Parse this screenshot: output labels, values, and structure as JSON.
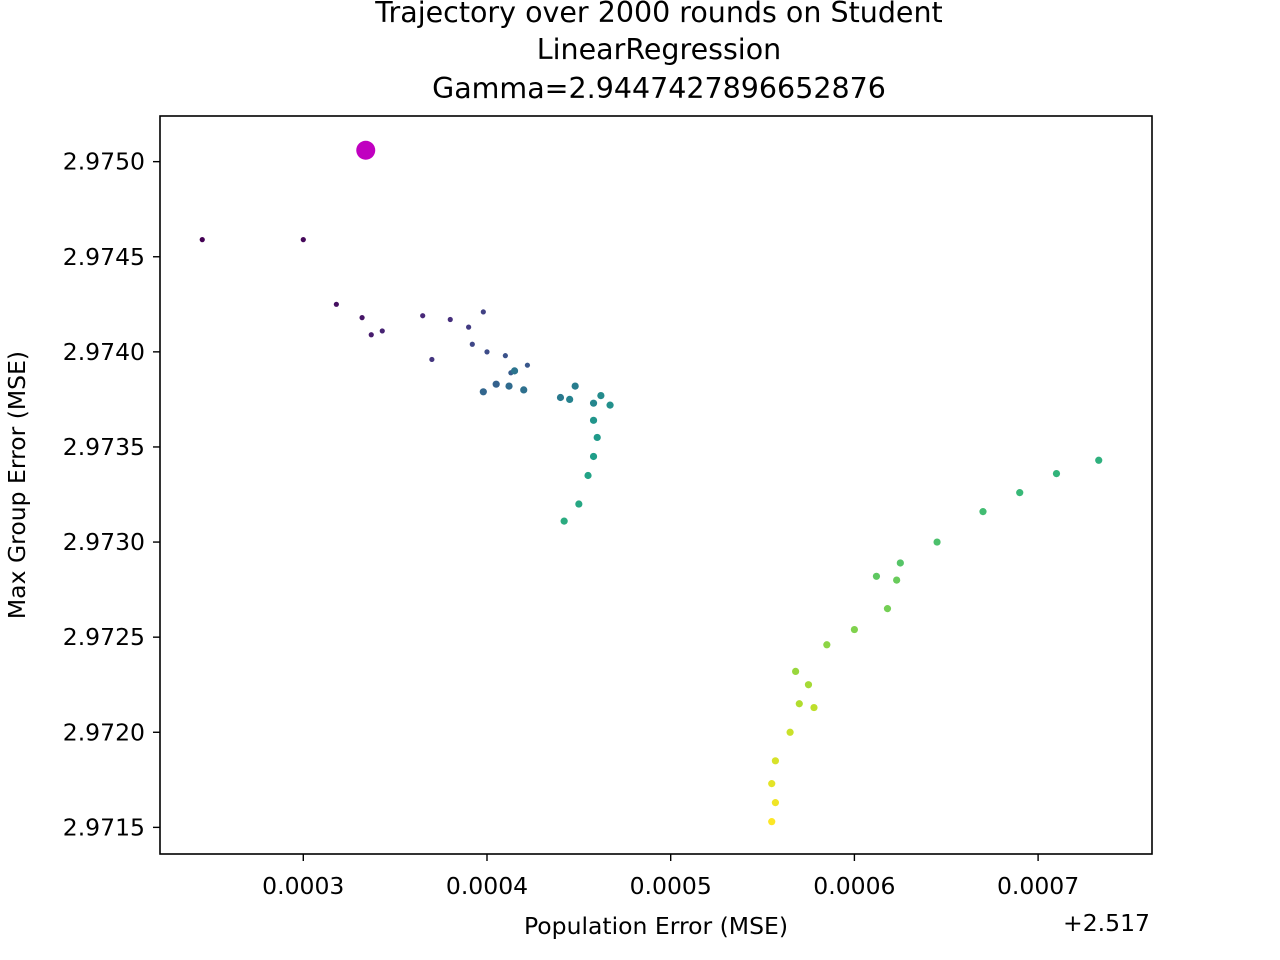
{
  "chart_data": {
    "type": "scatter",
    "title_lines": [
      "Trajectory over 2000 rounds on Student",
      "LinearRegression",
      "Gamma=2.9447427896652876"
    ],
    "xlabel": "Population Error (MSE)",
    "ylabel": "Max Group Error (MSE)",
    "x_offset_label": "+2.517",
    "x_offset": 2.517,
    "xlim": [
      0.000222,
      0.000762
    ],
    "ylim": [
      2.97136,
      2.97524
    ],
    "xticks": [
      0.0003,
      0.0004,
      0.0005,
      0.0006,
      0.0007
    ],
    "xtick_labels": [
      "0.0003",
      "0.0004",
      "0.0005",
      "0.0006",
      "0.0007"
    ],
    "yticks": [
      2.9715,
      2.972,
      2.9725,
      2.973,
      2.9735,
      2.974,
      2.9745,
      2.975
    ],
    "ytick_labels": [
      "2.9715",
      "2.9720",
      "2.9725",
      "2.9730",
      "2.9735",
      "2.9740",
      "2.9745",
      "2.9750"
    ],
    "colormap": "viridis",
    "highlight_point": {
      "x": 0.000334,
      "y": 2.97506,
      "color": "#c000c0"
    },
    "anchors": [
      [
        0.000245,
        2.97459
      ],
      [
        0.0003,
        2.97459
      ],
      [
        0.000318,
        2.97425
      ],
      [
        0.000332,
        2.97418
      ],
      [
        0.000337,
        2.97409
      ],
      [
        0.000343,
        2.97411
      ],
      [
        0.000365,
        2.97419
      ],
      [
        0.00038,
        2.97417
      ],
      [
        0.00037,
        2.97396
      ],
      [
        0.00039,
        2.97413
      ],
      [
        0.000398,
        2.97421
      ],
      [
        0.000392,
        2.97404
      ],
      [
        0.0004,
        2.974
      ],
      [
        0.00041,
        2.97398
      ],
      [
        0.000422,
        2.97393
      ],
      [
        0.000413,
        2.97389
      ],
      [
        0.000405,
        2.97383
      ],
      [
        0.000398,
        2.97379
      ],
      [
        0.000412,
        2.97382
      ],
      [
        0.00042,
        2.9738
      ],
      [
        0.000415,
        2.9739
      ],
      [
        0.00044,
        2.97376
      ],
      [
        0.000448,
        2.97382
      ],
      [
        0.000445,
        2.97375
      ],
      [
        0.000458,
        2.97373
      ],
      [
        0.000462,
        2.97377
      ],
      [
        0.000467,
        2.97372
      ],
      [
        0.000458,
        2.97364
      ],
      [
        0.00046,
        2.97355
      ],
      [
        0.000458,
        2.97345
      ],
      [
        0.000455,
        2.97335
      ],
      [
        0.00045,
        2.9732
      ],
      [
        0.000442,
        2.97311
      ],
      [
        0.000733,
        2.97343
      ],
      [
        0.00071,
        2.97336
      ],
      [
        0.00069,
        2.97326
      ],
      [
        0.00067,
        2.97316
      ],
      [
        0.000645,
        2.973
      ],
      [
        0.000625,
        2.97289
      ],
      [
        0.000612,
        2.97282
      ],
      [
        0.000623,
        2.9728
      ],
      [
        0.000618,
        2.97265
      ],
      [
        0.0006,
        2.97254
      ],
      [
        0.000585,
        2.97246
      ],
      [
        0.000568,
        2.97232
      ],
      [
        0.000575,
        2.97225
      ],
      [
        0.00057,
        2.97215
      ],
      [
        0.000578,
        2.97213
      ],
      [
        0.000565,
        2.972
      ],
      [
        0.000557,
        2.97185
      ],
      [
        0.000555,
        2.97173
      ],
      [
        0.000557,
        2.97163
      ],
      [
        0.000555,
        2.97153
      ]
    ]
  }
}
